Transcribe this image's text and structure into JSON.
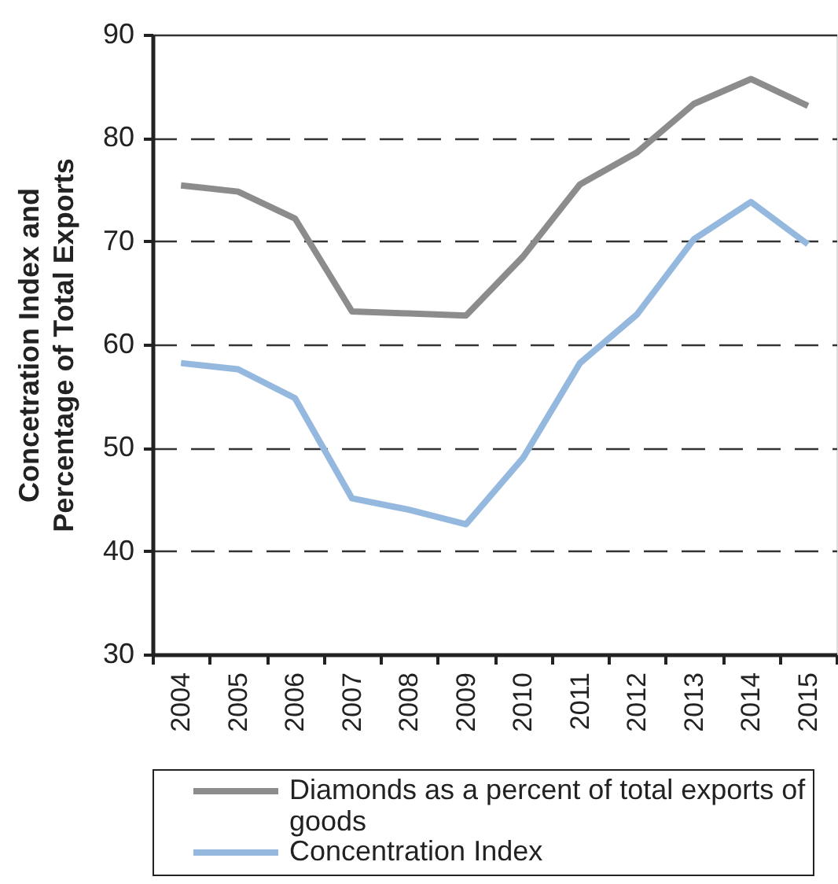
{
  "chart_data": {
    "type": "line",
    "ylabel": "Concetration Index and Percentage of Total Exports",
    "categories": [
      "2004",
      "2005",
      "2006",
      "2007",
      "2008",
      "2009",
      "2010",
      "2011",
      "2012",
      "2013",
      "2014",
      "2015"
    ],
    "series": [
      {
        "name": "Diamonds as a percent of total exports of goods",
        "color": "#8c8c8c",
        "values": [
          75.4,
          74.8,
          72.2,
          63.2,
          63.0,
          62.8,
          68.5,
          75.5,
          78.6,
          83.3,
          85.7,
          83.1
        ]
      },
      {
        "name": "Concentration Index",
        "color": "#95b8de",
        "values": [
          58.2,
          57.6,
          54.8,
          45.1,
          44.0,
          42.6,
          49.0,
          58.2,
          62.9,
          70.2,
          73.8,
          69.7
        ]
      }
    ],
    "ylim": [
      30,
      90
    ],
    "yticks": [
      30,
      40,
      50,
      60,
      70,
      80,
      90
    ],
    "grid": "y",
    "legend": "bottom"
  }
}
